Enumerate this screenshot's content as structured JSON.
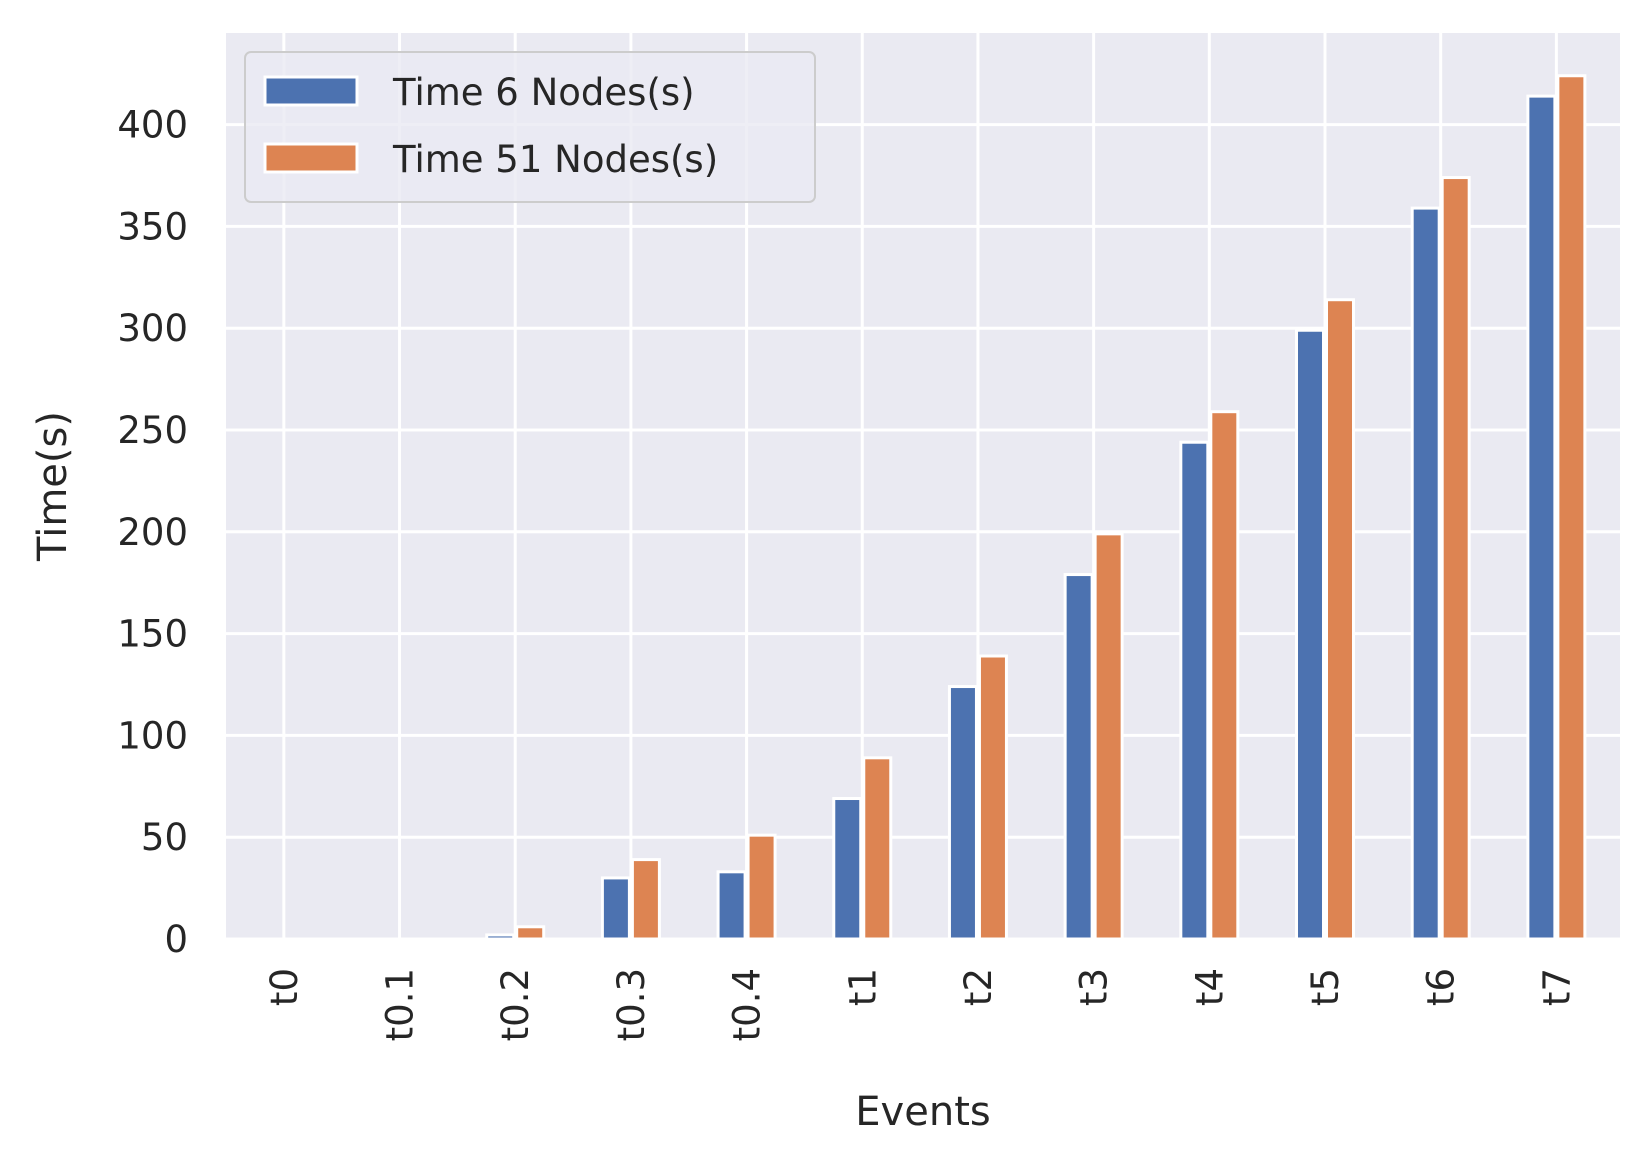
{
  "chart_data": {
    "type": "bar",
    "title": "",
    "xlabel": "Events",
    "ylabel": "Time(s)",
    "categories": [
      "t0",
      "t0.1",
      "t0.2",
      "t0.3",
      "t0.4",
      "t1",
      "t2",
      "t3",
      "t4",
      "t5",
      "t6",
      "t7"
    ],
    "series": [
      {
        "name": "Time 6 Nodes(s)",
        "color": "#4c72b0",
        "values": [
          0,
          0,
          2,
          30,
          33,
          69,
          124,
          179,
          244,
          299,
          359,
          414
        ]
      },
      {
        "name": "Time 51 Nodes(s)",
        "color": "#dd8452",
        "values": [
          0,
          0,
          6,
          39,
          51,
          89,
          139,
          199,
          259,
          314,
          374,
          424
        ]
      }
    ],
    "ylim": [
      0,
      445
    ],
    "yticks": [
      0,
      50,
      100,
      150,
      200,
      250,
      300,
      350,
      400
    ],
    "grid": true,
    "legend_position": "top-left",
    "background": "#eaeaf2"
  }
}
